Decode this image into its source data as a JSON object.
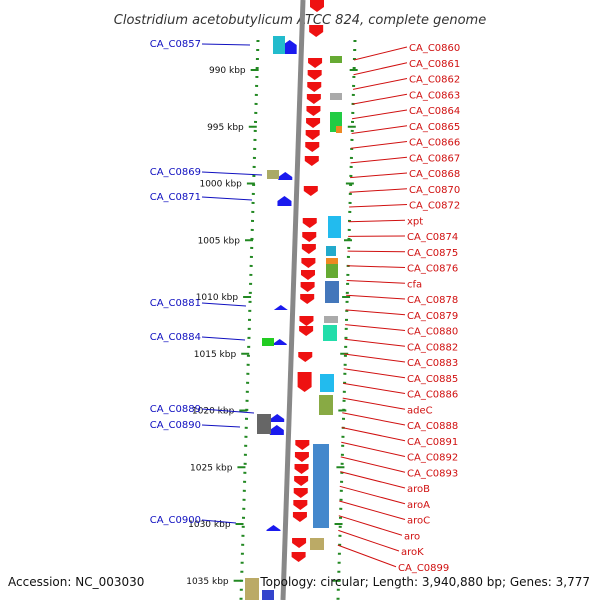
{
  "title": "Clostridium acetobutylicum ATCC 824, complete genome",
  "footer": {
    "accession": "Accession: NC_003030",
    "topology": "Topology: circular; Length: 3,940,880 bp; Genes: 3,777"
  },
  "ticks": [
    {
      "label": "990 kbp",
      "kbp": 990
    },
    {
      "label": "995 kbp",
      "kbp": 995
    },
    {
      "label": "1000 kbp",
      "kbp": 1000
    },
    {
      "label": "1005 kbp",
      "kbp": 1005
    },
    {
      "label": "1010 kbp",
      "kbp": 1010
    },
    {
      "label": "1015 kbp",
      "kbp": 1015
    },
    {
      "label": "1020 kbp",
      "kbp": 1020
    },
    {
      "label": "1025 kbp",
      "kbp": 1025
    },
    {
      "label": "1030 kbp",
      "kbp": 1030
    },
    {
      "label": "1035 kbp",
      "kbp": 1035
    }
  ],
  "left_labels": [
    "CA_C0857",
    "CA_C0869",
    "CA_C0871",
    "CA_C0881",
    "CA_C0884",
    "CA_C0889",
    "CA_C0890",
    "CA_C0900"
  ],
  "right_labels": [
    "CA_C0860",
    "CA_C0861",
    "CA_C0862",
    "CA_C0863",
    "CA_C0864",
    "CA_C0865",
    "CA_C0866",
    "CA_C0867",
    "CA_C0868",
    "CA_C0870",
    "CA_C0872",
    "xpt",
    "CA_C0874",
    "CA_C0875",
    "CA_C0876",
    "cfa",
    "CA_C0878",
    "CA_C0879",
    "CA_C0880",
    "CA_C0882",
    "CA_C0883",
    "CA_C0885",
    "CA_C0886",
    "adeC",
    "CA_C0888",
    "CA_C0891",
    "CA_C0892",
    "CA_C0893",
    "aroB",
    "aroA",
    "aroC",
    "aro",
    "aroK",
    "CA_C0899"
  ],
  "colors": {
    "left_label": "#1010c0",
    "right_label": "#d01010",
    "forward_gene": "#1a1aee",
    "reverse_gene": "#ee1111",
    "backbone": "#808080",
    "dotted_ring": "#228822"
  }
}
